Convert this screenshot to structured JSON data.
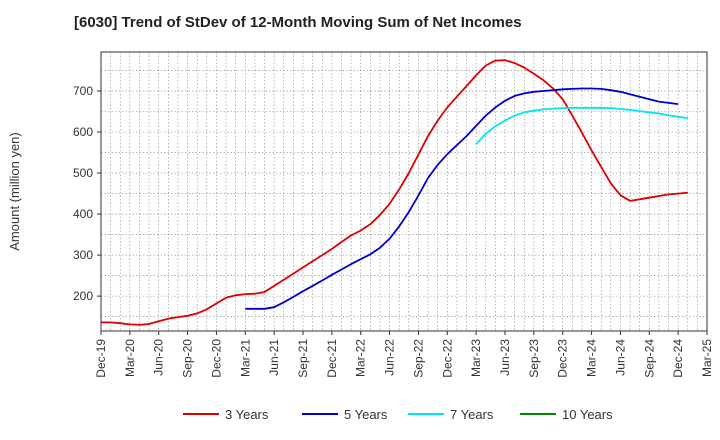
{
  "chart_data": {
    "type": "line",
    "title": "[6030]  Trend of StDev of 12-Month Moving Sum of Net Incomes",
    "xlabel": "",
    "ylabel": "Amount (million yen)",
    "x_tick_labels": [
      "Dec-19",
      "Mar-20",
      "Jun-20",
      "Sep-20",
      "Dec-20",
      "Mar-21",
      "Jun-21",
      "Sep-21",
      "Dec-21",
      "Mar-22",
      "Jun-22",
      "Sep-22",
      "Dec-22",
      "Mar-23",
      "Jun-23",
      "Sep-23",
      "Dec-23",
      "Mar-24",
      "Jun-24",
      "Sep-24",
      "Dec-24",
      "Mar-25"
    ],
    "y_ticks": [
      200,
      300,
      400,
      500,
      600,
      700
    ],
    "ylim": [
      115,
      795
    ],
    "grid": true,
    "legend_position": "bottom",
    "series": [
      {
        "name": "3 Years",
        "color": "#dd0000",
        "start_index": 0,
        "values": [
          136,
          136,
          134,
          131,
          130,
          132,
          139,
          145,
          149,
          152,
          158,
          168,
          182,
          196,
          202,
          205,
          206,
          210,
          225,
          240,
          255,
          270,
          285,
          300,
          315,
          332,
          348,
          360,
          375,
          398,
          425,
          460,
          500,
          545,
          590,
          628,
          660,
          686,
          712,
          738,
          762,
          774,
          775,
          768,
          757,
          742,
          726,
          706,
          680,
          640,
          598,
          555,
          515,
          475,
          446,
          432,
          436,
          440,
          444,
          448,
          450,
          452
        ]
      },
      {
        "name": "5 Years",
        "color": "#0000cc",
        "start_index": 15,
        "values": [
          169,
          169,
          169,
          173,
          185,
          198,
          212,
          225,
          238,
          252,
          265,
          278,
          290,
          302,
          318,
          340,
          370,
          405,
          445,
          488,
          520,
          546,
          568,
          590,
          615,
          640,
          660,
          676,
          688,
          694,
          698,
          700,
          702,
          704,
          705,
          706,
          706,
          705,
          702,
          698,
          692,
          686,
          680,
          674,
          671,
          668
        ]
      },
      {
        "name": "7 Years",
        "color": "#00e5ee",
        "start_index": 39,
        "values": [
          570,
          596,
          614,
          628,
          640,
          648,
          652,
          655,
          657,
          658,
          659,
          659,
          659,
          659,
          658,
          656,
          654,
          651,
          648,
          645,
          641,
          637,
          634
        ]
      },
      {
        "name": "10 Years",
        "color": "#008800",
        "start_index": 0,
        "values": []
      }
    ]
  }
}
